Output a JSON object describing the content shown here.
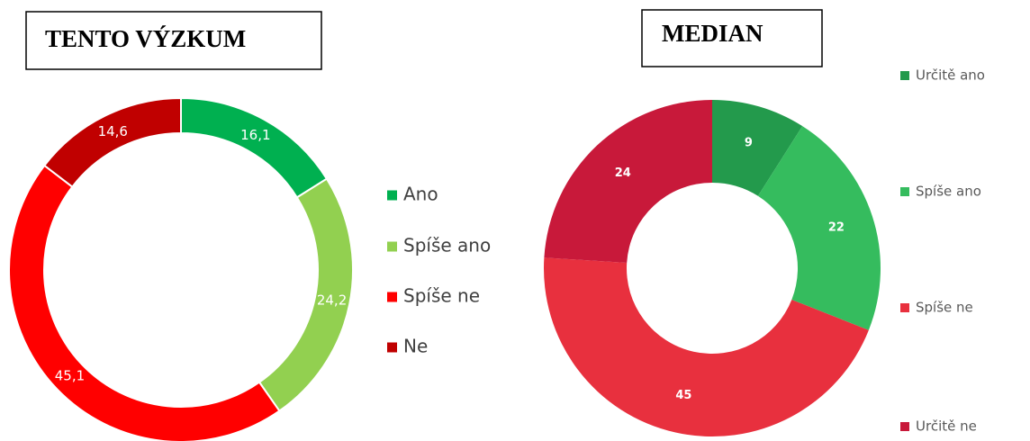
{
  "chart_data": [
    {
      "type": "donut",
      "title": "TENTO VÝZKUM",
      "categories": [
        "Ano",
        "Spíše ano",
        "Spíše ne",
        "Ne"
      ],
      "values": [
        16.1,
        24.2,
        45.1,
        14.6
      ],
      "value_labels": [
        "16,1",
        "24,2",
        "45,1",
        "14,6"
      ],
      "colors": [
        "#00b050",
        "#92d050",
        "#ff0000",
        "#c00000"
      ]
    },
    {
      "type": "donut",
      "title": "MEDIAN",
      "categories": [
        "Určitě ano",
        "Spíše ano",
        "Spíše ne",
        "Určitě ne"
      ],
      "values": [
        9,
        22,
        45,
        24
      ],
      "colors": [
        "#239a4c",
        "#35bc5e",
        "#e8303e",
        "#c8193a"
      ]
    }
  ]
}
